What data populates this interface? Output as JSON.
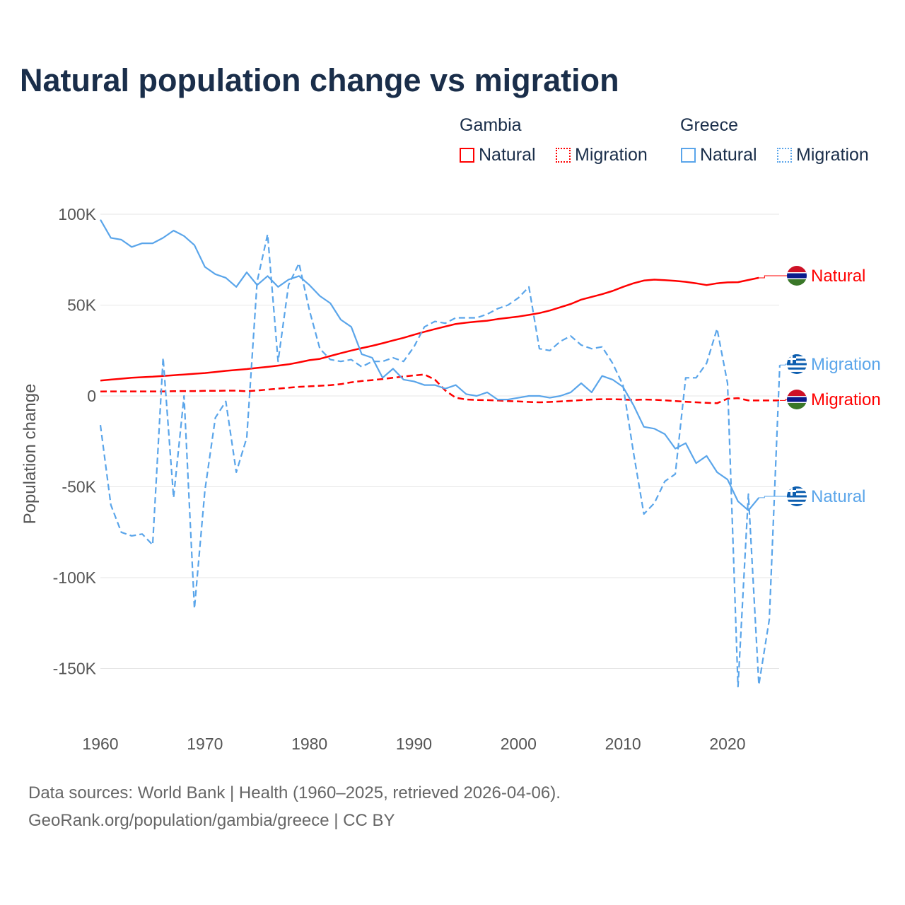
{
  "title": "Natural population change vs migration",
  "legend": {
    "groups": [
      {
        "name": "Gambia",
        "items": [
          "Natural",
          "Migration"
        ]
      },
      {
        "name": "Greece",
        "items": [
          "Natural",
          "Migration"
        ]
      }
    ]
  },
  "footer": {
    "line1": "Data sources: World Bank | Health (1960–2025, retrieved 2026-04-06).",
    "line2": "GeoRank.org/population/gambia/greece | CC BY"
  },
  "colors": {
    "gambia": "#ff0000",
    "greece": "#5aa5ea"
  },
  "chart_data": {
    "type": "line",
    "title": "Natural population change vs migration",
    "xlabel": "",
    "ylabel": "Population change",
    "xlim": [
      1960,
      2025
    ],
    "ylim": [
      -165000,
      100000
    ],
    "x_ticks": [
      "1960",
      "1970",
      "1980",
      "1990",
      "2000",
      "2010",
      "2020"
    ],
    "y_ticks": [
      "100K",
      "50K",
      "0",
      "-50K",
      "-100K",
      "-150K"
    ],
    "y_tick_values": [
      100000,
      50000,
      0,
      -50000,
      -100000,
      -150000
    ],
    "x_start": 1960,
    "series": [
      {
        "name": "Gambia Natural",
        "label": "Natural",
        "country": "gambia",
        "style": "solid",
        "values": [
          8500,
          9000,
          9500,
          10000,
          10300,
          10600,
          11000,
          11400,
          11800,
          12200,
          12600,
          13200,
          13800,
          14300,
          14800,
          15400,
          16000,
          16700,
          17400,
          18500,
          19700,
          20400,
          22000,
          23500,
          25000,
          26300,
          27600,
          29000,
          30500,
          32000,
          33700,
          35300,
          36800,
          38200,
          39600,
          40300,
          40900,
          41400,
          42300,
          43000,
          43700,
          44600,
          45600,
          47000,
          48800,
          50600,
          53000,
          54500,
          56000,
          57800,
          60000,
          62000,
          63500,
          64000,
          63700,
          63300,
          62800,
          62000,
          61000,
          62000,
          62500,
          62600,
          63800,
          65000
        ]
      },
      {
        "name": "Gambia Migration",
        "label": "Migration",
        "country": "gambia",
        "style": "dash",
        "values": [
          2400,
          2500,
          2500,
          2500,
          2500,
          2500,
          2500,
          2600,
          2700,
          2700,
          2800,
          2800,
          2900,
          2900,
          2600,
          3000,
          3500,
          4000,
          4500,
          5000,
          5300,
          5600,
          5900,
          6500,
          7500,
          8200,
          8700,
          9300,
          10000,
          10700,
          11300,
          11800,
          9000,
          3000,
          -1000,
          -2000,
          -2200,
          -2300,
          -2500,
          -2800,
          -3000,
          -3300,
          -3500,
          -3300,
          -3000,
          -2700,
          -2300,
          -2000,
          -1800,
          -1800,
          -2000,
          -2200,
          -2000,
          -2100,
          -2400,
          -2800,
          -3200,
          -3500,
          -3800,
          -4000,
          -1500,
          -1200,
          -2500,
          -2500,
          -2500,
          -2500
        ]
      },
      {
        "name": "Greece Natural",
        "label": "Natural",
        "country": "greece",
        "style": "solid",
        "values": [
          97000,
          87000,
          86000,
          82000,
          84000,
          84000,
          87000,
          91000,
          88000,
          83000,
          71000,
          67000,
          65000,
          60000,
          68000,
          61000,
          66000,
          60000,
          64000,
          66000,
          61000,
          55000,
          51000,
          42000,
          38000,
          23000,
          21000,
          10000,
          15000,
          9000,
          8000,
          6000,
          6000,
          4000,
          6000,
          1000,
          0,
          2000,
          -2000,
          -2000,
          -1000,
          0,
          0,
          -1000,
          0,
          2000,
          7000,
          2000,
          11000,
          9000,
          5000,
          -5000,
          -17000,
          -18000,
          -21000,
          -29000,
          -26000,
          -37000,
          -33000,
          -42000,
          -46000,
          -58000,
          -63000,
          -56000
        ]
      },
      {
        "name": "Greece Migration",
        "label": "Migration",
        "country": "greece",
        "style": "dash",
        "values": [
          -16000,
          -60000,
          -75000,
          -77000,
          -76000,
          -82000,
          21000,
          -56000,
          0,
          -117000,
          -52000,
          -12000,
          -3000,
          -42000,
          -23000,
          63000,
          89000,
          19000,
          61000,
          73000,
          47000,
          26000,
          20000,
          19000,
          20000,
          16000,
          19000,
          19000,
          21000,
          19000,
          27000,
          38000,
          41000,
          40000,
          43000,
          43000,
          43000,
          45000,
          48000,
          50000,
          54000,
          60000,
          26000,
          25000,
          30000,
          33000,
          28000,
          26000,
          27000,
          18000,
          6000,
          -31000,
          -65000,
          -59000,
          -47000,
          -43000,
          10000,
          10000,
          18000,
          37000,
          7000,
          -160000,
          -54000,
          -159000,
          -123000,
          17000
        ]
      }
    ]
  }
}
